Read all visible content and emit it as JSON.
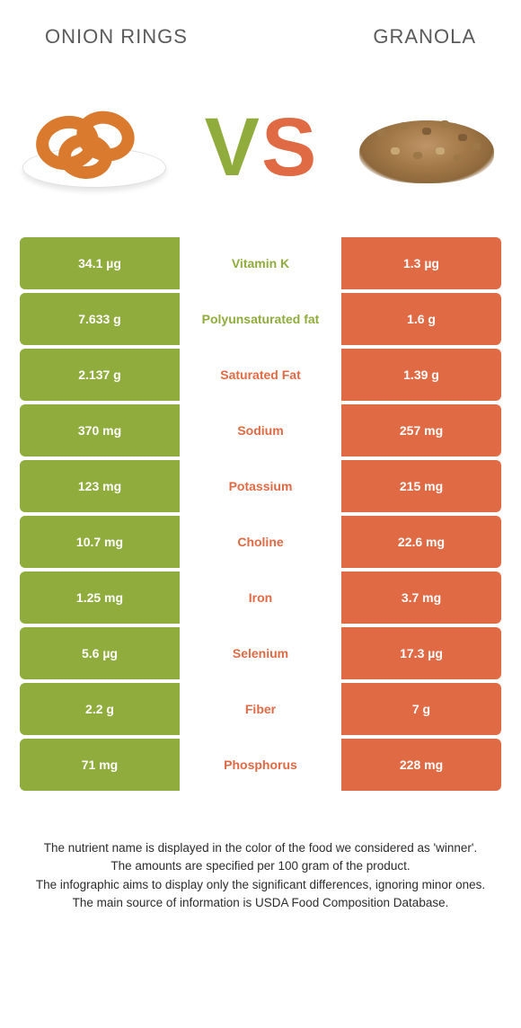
{
  "colors": {
    "left": "#8fac3c",
    "right": "#e06a44",
    "vs_v": "#8fac3c",
    "vs_s": "#e06a44"
  },
  "header": {
    "left_title": "ONION RINGS",
    "right_title": "GRANOLA",
    "vs_v": "V",
    "vs_s": "S"
  },
  "rows": [
    {
      "left": "34.1 µg",
      "label": "Vitamin K",
      "right": "1.3 µg",
      "winner": "left"
    },
    {
      "left": "7.633 g",
      "label": "Polyunsaturated fat",
      "right": "1.6 g",
      "winner": "left"
    },
    {
      "left": "2.137 g",
      "label": "Saturated Fat",
      "right": "1.39 g",
      "winner": "right"
    },
    {
      "left": "370 mg",
      "label": "Sodium",
      "right": "257 mg",
      "winner": "right"
    },
    {
      "left": "123 mg",
      "label": "Potassium",
      "right": "215 mg",
      "winner": "right"
    },
    {
      "left": "10.7 mg",
      "label": "Choline",
      "right": "22.6 mg",
      "winner": "right"
    },
    {
      "left": "1.25 mg",
      "label": "Iron",
      "right": "3.7 mg",
      "winner": "right"
    },
    {
      "left": "5.6 µg",
      "label": "Selenium",
      "right": "17.3 µg",
      "winner": "right"
    },
    {
      "left": "2.2 g",
      "label": "Fiber",
      "right": "7 g",
      "winner": "right"
    },
    {
      "left": "71 mg",
      "label": "Phosphorus",
      "right": "228 mg",
      "winner": "right"
    }
  ],
  "footer": {
    "line1": "The nutrient name is displayed in the color of the food we considered as 'winner'.",
    "line2": "The amounts are specified per 100 gram of the product.",
    "line3": "The infographic aims to display only the significant differences, ignoring minor ones.",
    "line4": "The main source of information is USDA Food Composition Database."
  }
}
